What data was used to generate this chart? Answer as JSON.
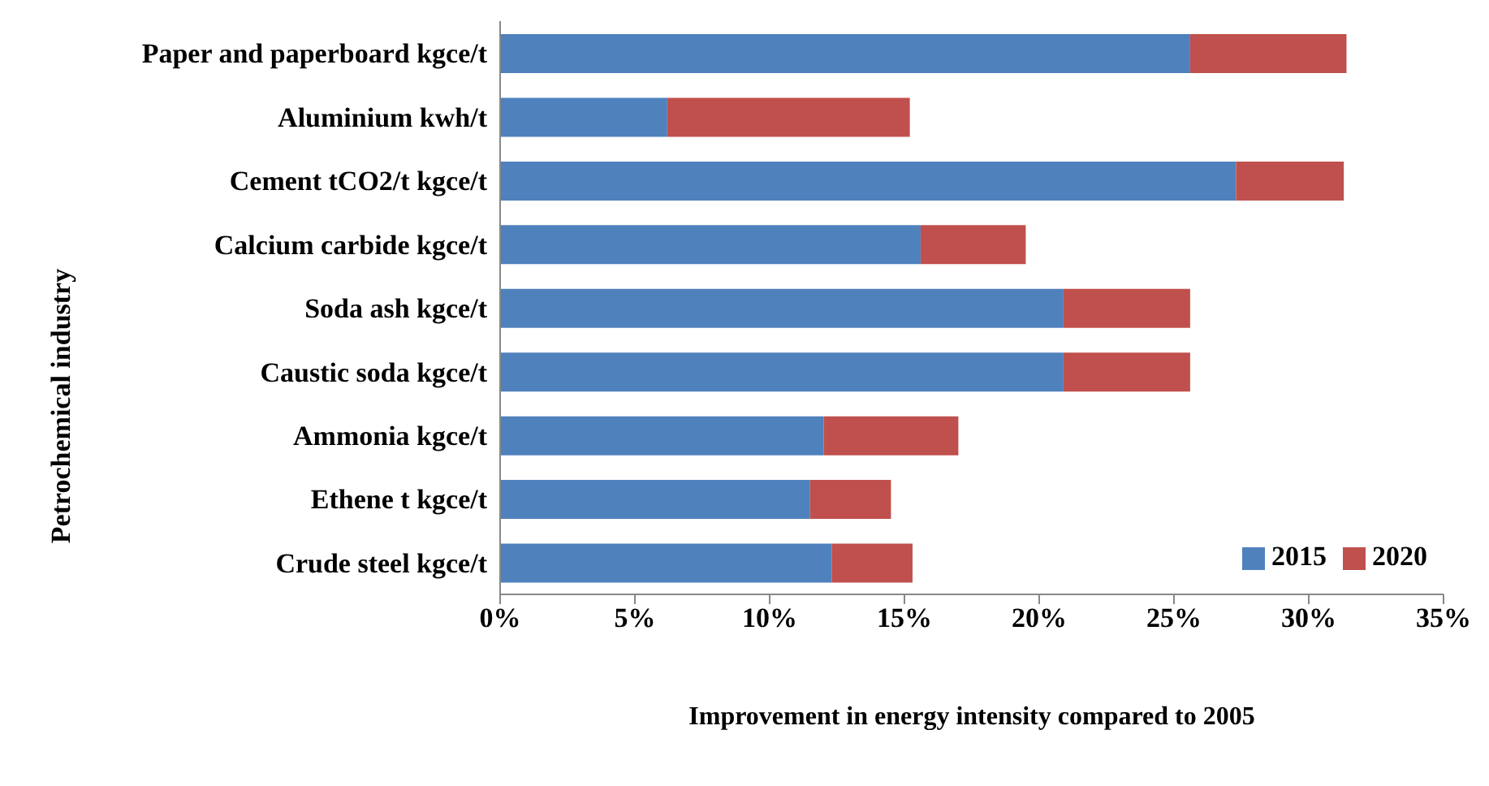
{
  "chart_data": {
    "type": "bar",
    "orientation": "horizontal",
    "stacked": true,
    "xlabel": "Improvement in energy intensity compared to 2005",
    "categories": [
      "Paper and paperboard kgce/t",
      "Aluminium kwh/t",
      "Cement tCO2/t kgce/t",
      "Calcium carbide kgce/t",
      "Soda ash kgce/t",
      "Caustic soda kgce/t",
      "Ammonia kgce/t",
      "Ethene t kgce/t",
      "Crude steel kgce/t"
    ],
    "series": [
      {
        "name": "2015",
        "color": "#4f81bd",
        "values": [
          25.6,
          6.2,
          27.3,
          15.6,
          20.9,
          20.9,
          12.0,
          11.5,
          12.3
        ]
      },
      {
        "name": "2020",
        "color": "#c0504d",
        "values": [
          5.8,
          9.0,
          4.0,
          3.9,
          4.7,
          4.7,
          5.0,
          3.0,
          3.0
        ]
      }
    ],
    "xlim": [
      0,
      35
    ],
    "xticks": [
      {
        "value": 0,
        "label": "0%"
      },
      {
        "value": 5,
        "label": "5%"
      },
      {
        "value": 10,
        "label": "10%"
      },
      {
        "value": 15,
        "label": "15%"
      },
      {
        "value": 20,
        "label": "20%"
      },
      {
        "value": 25,
        "label": "25%"
      },
      {
        "value": 30,
        "label": "30%"
      },
      {
        "value": 35,
        "label": "35%"
      }
    ],
    "annotations": [
      "Petrochemical industry"
    ],
    "grid": false,
    "legend": "bottom right"
  }
}
